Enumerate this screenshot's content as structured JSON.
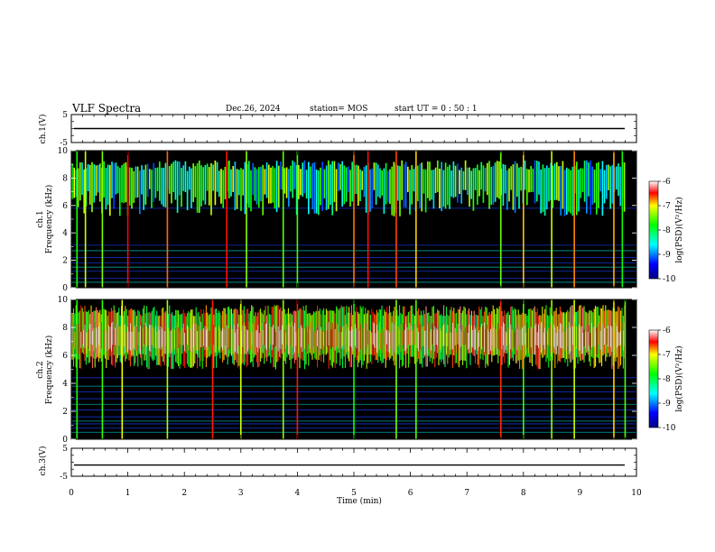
{
  "header": {
    "title": "VLF Spectra",
    "date": "Dec.26, 2024",
    "station": "station= MOS",
    "start": "start  UT  =   0 : 50 : 1"
  },
  "chart_data": [
    {
      "type": "line",
      "panel": "ch1-voltage",
      "ylabel": "ch.1(V)",
      "ylim": [
        -5,
        5
      ],
      "y_ticks": [
        "5",
        "-5"
      ],
      "series": [
        {
          "values": [
            0,
            0
          ]
        }
      ],
      "x": [
        0,
        10
      ]
    },
    {
      "type": "heatmap",
      "panel": "ch1-spectrogram",
      "ylabel": "ch.1\nFrequency (kHz)",
      "ylabel_line1": "ch.1",
      "ylabel_line2": "Frequency (kHz)",
      "xlim": [
        0,
        10
      ],
      "ylim": [
        0,
        10
      ],
      "y_ticks": [
        "0",
        "2",
        "4",
        "6",
        "8",
        "10"
      ],
      "colorbar": {
        "label": "log(PSD)(V²/Hz)",
        "range": [
          -10,
          -6
        ],
        "ticks": [
          "-6",
          "-7",
          "-8",
          "-9",
          "-10"
        ]
      },
      "band_khz": [
        5.2,
        9.3
      ],
      "spike_times_min": [
        0.1,
        0.25,
        0.55,
        1.0,
        1.7,
        2.75,
        3.1,
        3.75,
        4.0,
        5.0,
        5.25,
        5.75,
        6.1,
        7.6,
        8.0,
        8.5,
        8.9,
        9.6,
        9.75
      ]
    },
    {
      "type": "heatmap",
      "panel": "ch2-spectrogram",
      "ylabel": "ch.2\nFrequency (kHz)",
      "ylabel_line1": "ch.2",
      "ylabel_line2": "Frequency (kHz)",
      "xlim": [
        0,
        10
      ],
      "ylim": [
        0,
        10
      ],
      "y_ticks": [
        "0",
        "2",
        "4",
        "6",
        "8",
        "10"
      ],
      "colorbar": {
        "label": "log(PSD)(V²/Hz)",
        "range": [
          -10,
          -6
        ],
        "ticks": [
          "-6",
          "-7",
          "-8",
          "-9",
          "-10"
        ]
      },
      "band_khz": [
        5.0,
        9.6
      ],
      "spike_times_min": [
        0.1,
        0.55,
        0.9,
        1.7,
        2.5,
        3.0,
        3.75,
        4.0,
        5.0,
        5.75,
        6.1,
        7.6,
        8.0,
        8.5,
        8.9,
        9.6,
        9.8
      ]
    },
    {
      "type": "line",
      "panel": "ch3-voltage",
      "ylabel": "ch.3(V)",
      "ylim": [
        -5,
        5
      ],
      "y_ticks": [
        "5",
        "-5"
      ],
      "series": [
        {
          "values": [
            -1,
            -1
          ]
        }
      ],
      "x": [
        0,
        10
      ]
    }
  ],
  "x_axis": {
    "label": "Time  (min)",
    "ticks": [
      "0",
      "1",
      "2",
      "3",
      "4",
      "5",
      "6",
      "7",
      "8",
      "9",
      "10"
    ]
  }
}
